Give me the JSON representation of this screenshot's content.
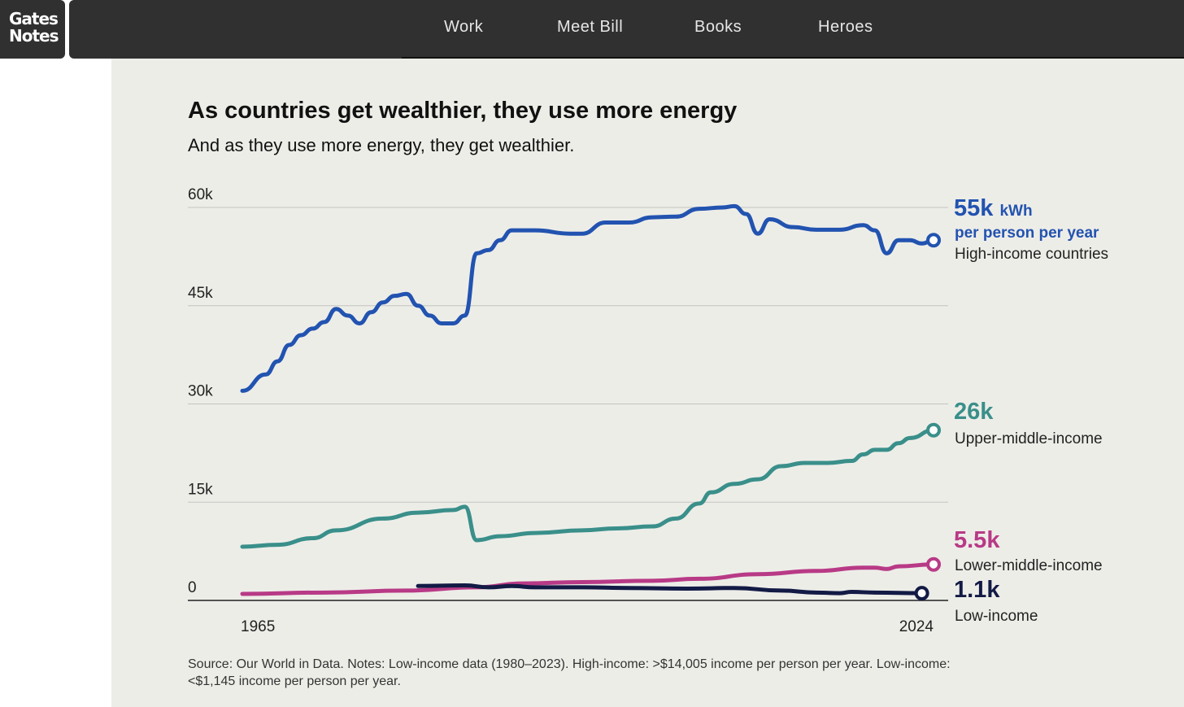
{
  "logo": {
    "text": "Gates Notes"
  },
  "nav": {
    "items": [
      "Work",
      "Meet Bill",
      "Books",
      "Heroes"
    ]
  },
  "chart_data": {
    "type": "line",
    "title": "As countries get wealthier, they use more energy",
    "subtitle": "And as they use more energy, they get wealthier.",
    "unit": "kWh per person per year",
    "ylim": [
      0,
      60000
    ],
    "yticks": [
      {
        "v": 0,
        "label": "0"
      },
      {
        "v": 15000,
        "label": "15k"
      },
      {
        "v": 30000,
        "label": "30k"
      },
      {
        "v": 45000,
        "label": "45k"
      },
      {
        "v": 60000,
        "label": "60k"
      }
    ],
    "xlim": [
      1965,
      2024
    ],
    "xtick_labels": [
      "1965",
      "2024"
    ],
    "grid": true,
    "series": [
      {
        "name": "High-income countries",
        "color": "#2253b0",
        "end_label": "55k",
        "unit_label": "kWh",
        "sub_label": "per person per year",
        "points": [
          [
            1965,
            32000
          ],
          [
            1967,
            34500
          ],
          [
            1968,
            36500
          ],
          [
            1969,
            39000
          ],
          [
            1970,
            40500
          ],
          [
            1971,
            41500
          ],
          [
            1972,
            42500
          ],
          [
            1973,
            44500
          ],
          [
            1974,
            43500
          ],
          [
            1975,
            42300
          ],
          [
            1976,
            44000
          ],
          [
            1977,
            45500
          ],
          [
            1978,
            46500
          ],
          [
            1979,
            46800
          ],
          [
            1980,
            45000
          ],
          [
            1981,
            43500
          ],
          [
            1982,
            42300
          ],
          [
            1983,
            42300
          ],
          [
            1984,
            43500
          ],
          [
            1985,
            53000
          ],
          [
            1986,
            53500
          ],
          [
            1987,
            55000
          ],
          [
            1988,
            56500
          ],
          [
            1990,
            56500
          ],
          [
            1993,
            56000
          ],
          [
            1994,
            56000
          ],
          [
            1996,
            57700
          ],
          [
            1998,
            57700
          ],
          [
            2000,
            58500
          ],
          [
            2002,
            58600
          ],
          [
            2004,
            59800
          ],
          [
            2006,
            60000
          ],
          [
            2007,
            60200
          ],
          [
            2008,
            59000
          ],
          [
            2009,
            56000
          ],
          [
            2010,
            58200
          ],
          [
            2012,
            57000
          ],
          [
            2014,
            56600
          ],
          [
            2016,
            56600
          ],
          [
            2018,
            57300
          ],
          [
            2019,
            56500
          ],
          [
            2020,
            53000
          ],
          [
            2021,
            55000
          ],
          [
            2022,
            55000
          ],
          [
            2023,
            54500
          ],
          [
            2024,
            55000
          ]
        ]
      },
      {
        "name": "Upper-middle-income",
        "color": "#3a8f8a",
        "end_label": "26k",
        "points": [
          [
            1965,
            8200
          ],
          [
            1968,
            8500
          ],
          [
            1971,
            9500
          ],
          [
            1973,
            10700
          ],
          [
            1977,
            12500
          ],
          [
            1980,
            13400
          ],
          [
            1983,
            13800
          ],
          [
            1984,
            14300
          ],
          [
            1985,
            9200
          ],
          [
            1987,
            9800
          ],
          [
            1990,
            10300
          ],
          [
            1994,
            10700
          ],
          [
            1997,
            11000
          ],
          [
            2000,
            11300
          ],
          [
            2002,
            12500
          ],
          [
            2004,
            14800
          ],
          [
            2005,
            16500
          ],
          [
            2007,
            17800
          ],
          [
            2009,
            18500
          ],
          [
            2011,
            20500
          ],
          [
            2013,
            21000
          ],
          [
            2015,
            21000
          ],
          [
            2017,
            21300
          ],
          [
            2018,
            22300
          ],
          [
            2019,
            23000
          ],
          [
            2020,
            23000
          ],
          [
            2021,
            24000
          ],
          [
            2022,
            24800
          ],
          [
            2024,
            26000
          ]
        ]
      },
      {
        "name": "Lower-middle-income",
        "color": "#b83a86",
        "end_label": "5.5k",
        "points": [
          [
            1965,
            1000
          ],
          [
            1972,
            1200
          ],
          [
            1979,
            1500
          ],
          [
            1985,
            2000
          ],
          [
            1989,
            2600
          ],
          [
            1994,
            2800
          ],
          [
            2000,
            3000
          ],
          [
            2004,
            3300
          ],
          [
            2009,
            4000
          ],
          [
            2014,
            4500
          ],
          [
            2018,
            5000
          ],
          [
            2019,
            5000
          ],
          [
            2020,
            4800
          ],
          [
            2021,
            5200
          ],
          [
            2024,
            5500
          ]
        ]
      },
      {
        "name": "Low-income",
        "color": "#121a45",
        "end_label": "1.1k",
        "points": [
          [
            1980,
            2200
          ],
          [
            1984,
            2300
          ],
          [
            1986,
            2000
          ],
          [
            1988,
            2200
          ],
          [
            1990,
            2000
          ],
          [
            1994,
            2000
          ],
          [
            1998,
            1900
          ],
          [
            2003,
            1800
          ],
          [
            2007,
            1900
          ],
          [
            2011,
            1500
          ],
          [
            2014,
            1200
          ],
          [
            2016,
            1100
          ],
          [
            2017,
            1300
          ],
          [
            2019,
            1200
          ],
          [
            2023,
            1100
          ]
        ]
      }
    ]
  },
  "source": "Source: Our World in Data. Notes: Low-income data (1980–2023). High-income: >$14,005 income per person per year. Low-income: <$1,145 income per person per year."
}
